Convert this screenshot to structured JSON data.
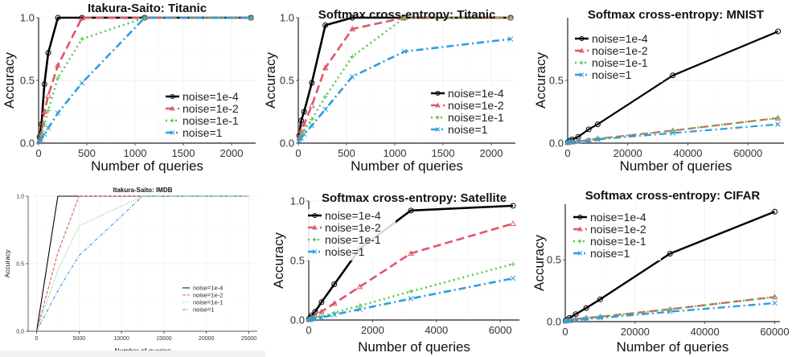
{
  "figure": {
    "legend_labels": [
      "noise=1e-4",
      "noise=1e-2",
      "noise=1e-1",
      "noise=1"
    ],
    "series_colors": [
      "#000000",
      "#e0566a",
      "#5bc84a",
      "#2a9fde"
    ],
    "series_dash": [
      "solid",
      "longdash",
      "dotted",
      "dotdash"
    ],
    "series_markers": [
      "circle",
      "triangle",
      "plus",
      "cross"
    ]
  },
  "chart_data": [
    {
      "type": "line",
      "title": "Itakura-Saito: Titanic",
      "xlabel": "Number of queries",
      "ylabel": "Accuracy",
      "xlim": [
        0,
        2250
      ],
      "ylim": [
        0,
        1.0
      ],
      "xticks": [
        0,
        500,
        1000,
        1500,
        2000
      ],
      "xtick_labels": [
        "0",
        "500",
        "1000",
        "1500",
        "2000"
      ],
      "yticks": [
        0,
        0.5,
        1.0
      ],
      "ytick_labels": [
        "0.0",
        "0.5",
        "1.0"
      ],
      "grid": true,
      "legend_position": "bottom-right",
      "series": [
        {
          "name": "noise=1e-4",
          "x": [
            10,
            30,
            60,
            100,
            200,
            450,
            1100,
            2200
          ],
          "y": [
            0.05,
            0.15,
            0.47,
            0.72,
            1.0,
            1.0,
            1.0,
            1.0
          ]
        },
        {
          "name": "noise=1e-2",
          "x": [
            10,
            30,
            60,
            100,
            200,
            450,
            1100,
            2200
          ],
          "y": [
            0.02,
            0.08,
            0.25,
            0.38,
            0.62,
            1.0,
            1.0,
            1.0
          ]
        },
        {
          "name": "noise=1e-1",
          "x": [
            10,
            30,
            60,
            100,
            200,
            450,
            1100,
            2200
          ],
          "y": [
            0.02,
            0.06,
            0.15,
            0.26,
            0.52,
            0.83,
            1.0,
            1.0
          ]
        },
        {
          "name": "noise=1",
          "x": [
            10,
            30,
            60,
            100,
            200,
            450,
            1100,
            2200
          ],
          "y": [
            0.01,
            0.03,
            0.07,
            0.12,
            0.24,
            0.48,
            1.0,
            1.0
          ]
        }
      ]
    },
    {
      "type": "line",
      "title": "Softmax cross-entropy: Titanic",
      "xlabel": "Number of queries",
      "ylabel": "Accuracy",
      "xlim": [
        0,
        2250
      ],
      "ylim": [
        0,
        1.0
      ],
      "xticks": [
        0,
        500,
        1000,
        1500,
        2000
      ],
      "xtick_labels": [
        "0",
        "500",
        "1000",
        "1500",
        "2000"
      ],
      "yticks": [
        0,
        0.5,
        1.0
      ],
      "ytick_labels": [
        "0.0",
        "0.5",
        "1.0"
      ],
      "grid": true,
      "legend_position": "bottom-right",
      "series": [
        {
          "name": "noise=1e-4",
          "x": [
            10,
            30,
            60,
            140,
            280,
            560,
            1100,
            2200
          ],
          "y": [
            0.06,
            0.18,
            0.25,
            0.48,
            0.94,
            1.0,
            1.0,
            1.0
          ]
        },
        {
          "name": "noise=1e-2",
          "x": [
            10,
            30,
            60,
            140,
            280,
            560,
            1100,
            2200
          ],
          "y": [
            0.04,
            0.1,
            0.15,
            0.3,
            0.6,
            0.91,
            1.0,
            1.0
          ]
        },
        {
          "name": "noise=1e-1",
          "x": [
            10,
            30,
            60,
            140,
            280,
            560,
            1100,
            2200
          ],
          "y": [
            0.03,
            0.06,
            0.1,
            0.19,
            0.37,
            0.69,
            1.0,
            1.0
          ]
        },
        {
          "name": "noise=1",
          "x": [
            10,
            30,
            60,
            140,
            280,
            560,
            1100,
            2200
          ],
          "y": [
            0.02,
            0.04,
            0.07,
            0.14,
            0.27,
            0.53,
            0.73,
            0.83
          ]
        }
      ]
    },
    {
      "type": "line",
      "title": "Softmax cross-entropy: MNIST",
      "xlabel": "Number of queries",
      "ylabel": "Accuracy",
      "xlim": [
        0,
        72000
      ],
      "ylim": [
        0,
        1.0
      ],
      "xticks": [
        0,
        20000,
        40000,
        60000
      ],
      "xtick_labels": [
        "0",
        "20000",
        "40000",
        "60000"
      ],
      "yticks": [
        0,
        0.5
      ],
      "ytick_labels": [
        "0.0",
        "0.5"
      ],
      "grid": true,
      "legend_position": "top-left",
      "series": [
        {
          "name": "noise=1e-4",
          "x": [
            100,
            700,
            1500,
            3500,
            7000,
            10000,
            35000,
            70000
          ],
          "y": [
            0.01,
            0.02,
            0.03,
            0.05,
            0.11,
            0.15,
            0.54,
            0.89
          ]
        },
        {
          "name": "noise=1e-2",
          "x": [
            100,
            700,
            1500,
            3500,
            7000,
            10000,
            35000,
            70000
          ],
          "y": [
            0.005,
            0.01,
            0.01,
            0.015,
            0.025,
            0.035,
            0.1,
            0.2
          ]
        },
        {
          "name": "noise=1e-1",
          "x": [
            100,
            700,
            1500,
            3500,
            7000,
            10000,
            35000,
            70000
          ],
          "y": [
            0.005,
            0.01,
            0.01,
            0.015,
            0.025,
            0.035,
            0.1,
            0.2
          ]
        },
        {
          "name": "noise=1",
          "x": [
            100,
            700,
            1500,
            3500,
            7000,
            10000,
            35000,
            70000
          ],
          "y": [
            0.004,
            0.008,
            0.01,
            0.012,
            0.02,
            0.03,
            0.08,
            0.15
          ]
        }
      ]
    },
    {
      "type": "line",
      "title": "Itakura-Saito: IMDB",
      "xlabel": "Number of queries",
      "ylabel": "Accuracy",
      "xlim": [
        -1000,
        26000
      ],
      "ylim": [
        0,
        1.0
      ],
      "xticks": [
        0,
        5000,
        10000,
        15000,
        20000,
        25000
      ],
      "xtick_labels": [
        "0",
        "5000",
        "10000",
        "15000",
        "20000",
        "25000"
      ],
      "yticks": [
        0,
        0.5,
        1.0
      ],
      "ytick_labels": [
        "0.0",
        "0.5",
        "1.0"
      ],
      "grid": true,
      "legend_position": "bottom-right",
      "series": [
        {
          "name": "noise=1e-4",
          "x": [
            0,
            2500,
            5000,
            12500,
            25000
          ],
          "y": [
            0.0,
            1.0,
            1.0,
            1.0,
            1.0
          ]
        },
        {
          "name": "noise=1e-2",
          "x": [
            0,
            2500,
            5000,
            12500,
            25000
          ],
          "y": [
            0.0,
            0.58,
            1.0,
            1.0,
            1.0
          ]
        },
        {
          "name": "noise=1e-1",
          "x": [
            0,
            2500,
            5000,
            12500,
            25000
          ],
          "y": [
            0.0,
            0.45,
            0.78,
            1.0,
            1.0
          ]
        },
        {
          "name": "noise=1",
          "x": [
            0,
            2500,
            5000,
            12500,
            25000
          ],
          "y": [
            0.0,
            0.3,
            0.56,
            1.0,
            1.0
          ]
        }
      ]
    },
    {
      "type": "line",
      "title": "Softmax cross-entropy: Satellite",
      "xlabel": "Number of queries",
      "ylabel": "Accuracy",
      "xlim": [
        0,
        6600
      ],
      "ylim": [
        0,
        1.0
      ],
      "xticks": [
        0,
        2000,
        4000,
        6000
      ],
      "xtick_labels": [
        "0",
        "2000",
        "4000",
        "6000"
      ],
      "yticks": [
        0,
        0.5,
        1.0
      ],
      "ytick_labels": [
        "0.0",
        "0.5",
        "1.0"
      ],
      "grid": true,
      "legend_position": "top-left",
      "series": [
        {
          "name": "noise=1e-4",
          "x": [
            10,
            50,
            100,
            200,
            400,
            800,
            1600,
            3200,
            6400
          ],
          "y": [
            0.01,
            0.02,
            0.04,
            0.07,
            0.15,
            0.3,
            0.6,
            0.92,
            0.96
          ]
        },
        {
          "name": "noise=1e-2",
          "x": [
            10,
            50,
            100,
            200,
            400,
            800,
            1600,
            3200,
            6400
          ],
          "y": [
            0.005,
            0.01,
            0.02,
            0.04,
            0.07,
            0.14,
            0.28,
            0.56,
            0.81
          ]
        },
        {
          "name": "noise=1e-1",
          "x": [
            10,
            50,
            100,
            200,
            400,
            800,
            1600,
            3200,
            6400
          ],
          "y": [
            0.003,
            0.006,
            0.01,
            0.02,
            0.03,
            0.06,
            0.12,
            0.24,
            0.47
          ]
        },
        {
          "name": "noise=1",
          "x": [
            10,
            50,
            100,
            200,
            400,
            800,
            1600,
            3200,
            6400
          ],
          "y": [
            0.002,
            0.004,
            0.008,
            0.012,
            0.02,
            0.045,
            0.09,
            0.18,
            0.35
          ]
        }
      ]
    },
    {
      "type": "line",
      "title": "Softmax cross-entropy: CIFAR",
      "xlabel": "Number of queries",
      "ylabel": "Accuracy",
      "xlim": [
        0,
        61500
      ],
      "ylim": [
        0,
        0.95
      ],
      "xticks": [
        0,
        20000,
        40000,
        60000
      ],
      "xtick_labels": [
        "0",
        "20000",
        "40000",
        "60000"
      ],
      "yticks": [
        0,
        0.5
      ],
      "ytick_labels": [
        "0.0",
        "0.5"
      ],
      "grid": true,
      "legend_position": "top-left",
      "series": [
        {
          "name": "noise=1e-4",
          "x": [
            100,
            600,
            1200,
            3000,
            6000,
            10000,
            30000,
            60000
          ],
          "y": [
            0.01,
            0.015,
            0.03,
            0.06,
            0.11,
            0.18,
            0.55,
            0.89
          ]
        },
        {
          "name": "noise=1e-2",
          "x": [
            100,
            600,
            1200,
            3000,
            6000,
            10000,
            30000,
            60000
          ],
          "y": [
            0.005,
            0.01,
            0.01,
            0.02,
            0.03,
            0.04,
            0.1,
            0.2
          ]
        },
        {
          "name": "noise=1e-1",
          "x": [
            100,
            600,
            1200,
            3000,
            6000,
            10000,
            30000,
            60000
          ],
          "y": [
            0.005,
            0.01,
            0.01,
            0.02,
            0.03,
            0.04,
            0.1,
            0.2
          ]
        },
        {
          "name": "noise=1",
          "x": [
            100,
            600,
            1200,
            3000,
            6000,
            10000,
            30000,
            60000
          ],
          "y": [
            0.004,
            0.006,
            0.008,
            0.012,
            0.02,
            0.03,
            0.08,
            0.15
          ]
        }
      ]
    }
  ]
}
